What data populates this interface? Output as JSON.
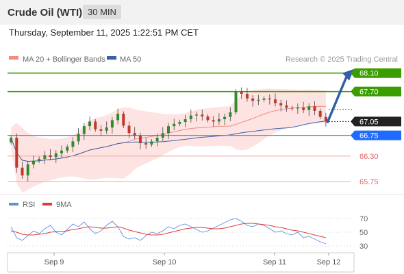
{
  "header": {
    "title": "Crude Oil (WTI)",
    "timeframe": "30 MIN"
  },
  "datetime": "Thursday, September 11, 2025 1:22:51 PM CET",
  "legend": {
    "ma20_label": "MA 20 + Bollinger Bands",
    "ma20_color": "#f28b82",
    "ma50_label": "MA 50",
    "ma50_color": "#3a5fa8",
    "credit": "Research © 2025 Trading Central"
  },
  "levels": [
    {
      "value": 68.1,
      "label": "68.10",
      "color": "#3a9e00",
      "style": "green-flag"
    },
    {
      "value": 67.7,
      "label": "67.70",
      "color": "#3a9e00",
      "style": "green-flag"
    },
    {
      "value": 67.05,
      "label": "67.05",
      "color": "#222222",
      "style": "dark-flag"
    },
    {
      "value": 66.75,
      "label": "66.75",
      "color": "#1f6bff",
      "style": "blue-flag"
    },
    {
      "value": 66.3,
      "label": "66.30",
      "color": "#e06666",
      "style": "red-text"
    },
    {
      "value": 65.75,
      "label": "65.75",
      "color": "#e06666",
      "style": "red-text"
    }
  ],
  "rsi": {
    "rsi_label": "RSI",
    "rsi_color": "#5b8fe0",
    "ma9_label": "9MA",
    "ma9_color": "#e23a3a",
    "ticks": [
      70,
      50,
      30
    ]
  },
  "x_axis": {
    "labels": [
      "Sep 9",
      "Sep 10",
      "Sep 11",
      "Sep 12"
    ]
  },
  "chart_data": [
    {
      "type": "candlestick",
      "ylim": [
        65.6,
        68.2
      ],
      "series_close": [
        66.7,
        66.05,
        65.88,
        66.12,
        66.2,
        66.24,
        66.32,
        66.28,
        66.36,
        66.42,
        66.5,
        66.62,
        66.78,
        66.95,
        67.05,
        66.88,
        66.85,
        66.92,
        67.08,
        67.22,
        66.96,
        66.8,
        66.74,
        66.58,
        66.55,
        66.62,
        66.7,
        66.8,
        66.95,
        67.0,
        67.04,
        67.1,
        67.18,
        67.2,
        67.16,
        67.08,
        67.05,
        67.1,
        67.15,
        67.25,
        67.7,
        67.65,
        67.55,
        67.5,
        67.52,
        67.55,
        67.53,
        67.45,
        67.4,
        67.35,
        67.33,
        67.35,
        67.3,
        67.38,
        67.28,
        67.15,
        67.05
      ],
      "ma_label": "MA 50",
      "bands": "MA 20 + Bollinger Bands"
    },
    {
      "type": "line",
      "title": "RSI",
      "ylim": [
        25,
        75
      ],
      "series": [
        {
          "name": "RSI",
          "values": [
            58,
            42,
            38,
            45,
            52,
            48,
            55,
            60,
            50,
            46,
            54,
            62,
            58,
            65,
            55,
            48,
            52,
            60,
            66,
            58,
            44,
            40,
            42,
            38,
            45,
            50,
            48,
            52,
            58,
            55,
            60,
            62,
            58,
            54,
            50,
            52,
            56,
            60,
            64,
            68,
            70,
            66,
            60,
            58,
            62,
            60,
            55,
            50,
            52,
            48,
            46,
            50,
            42,
            44,
            40,
            36,
            33
          ]
        },
        {
          "name": "9MA",
          "values": [
            52,
            50,
            47,
            46,
            46,
            47,
            48,
            50,
            51,
            51,
            52,
            54,
            55,
            57,
            58,
            57,
            56,
            56,
            57,
            58,
            56,
            53,
            51,
            49,
            47,
            46,
            46,
            47,
            49,
            51,
            53,
            55,
            56,
            57,
            57,
            56,
            55,
            55,
            56,
            58,
            60,
            62,
            63,
            63,
            62,
            61,
            60,
            58,
            57,
            55,
            53,
            52,
            50,
            48,
            46,
            44,
            42
          ]
        }
      ]
    }
  ]
}
